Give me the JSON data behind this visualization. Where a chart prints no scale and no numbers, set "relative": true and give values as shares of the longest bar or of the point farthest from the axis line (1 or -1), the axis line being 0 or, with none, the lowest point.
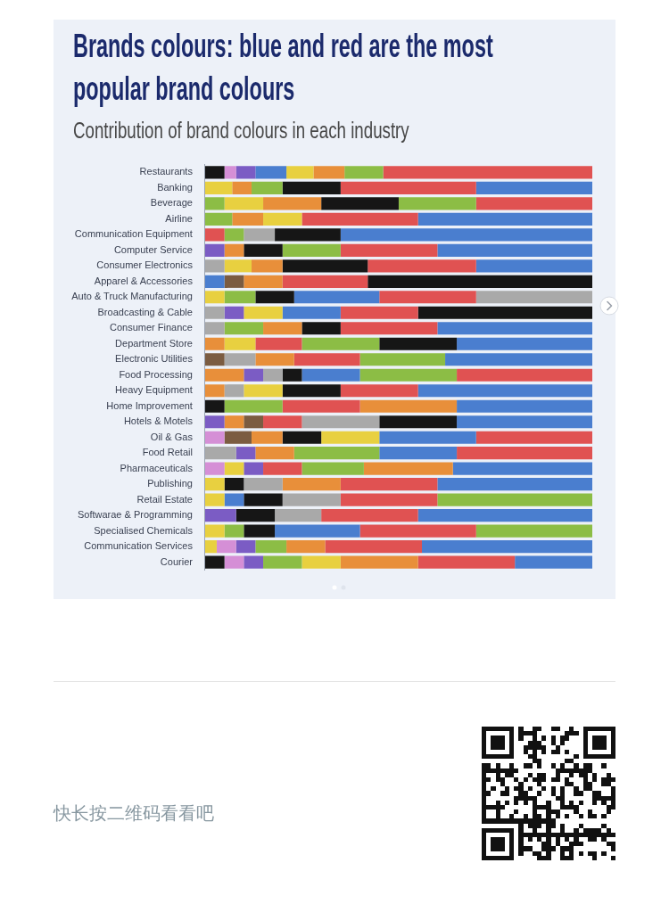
{
  "chart_data": {
    "type": "bar",
    "title": "Brands colours: blue and red are the most popular brand colours",
    "subtitle": "Contribution of brand colours in each industry",
    "orientation": "horizontal",
    "stacked": true,
    "relative": true,
    "categories": [
      "Restaurants",
      "Banking",
      "Beverage",
      "Airline",
      "Communication Equipment",
      "Computer Service",
      "Consumer Electronics",
      "Apparel & Accessories",
      "Auto & Truck Manufacturing",
      "Broadcasting & Cable",
      "Consumer Finance",
      "Department Store",
      "Electronic Utilities",
      "Food Processing",
      "Heavy Equipment",
      "Home Improvement",
      "Hotels & Motels",
      "Oil & Gas",
      "Food Retail",
      "Pharmaceuticals",
      "Publishing",
      "Retail Estate",
      "Softwarae & Programming",
      "Specialised Chemicals",
      "Communication Services",
      "Courier"
    ],
    "series": [
      {
        "values": [
          0.05,
          null,
          null,
          null,
          null,
          null,
          null,
          null,
          null,
          null,
          null,
          null,
          null,
          null,
          null,
          null,
          null,
          null,
          null,
          null,
          null,
          null,
          null,
          null,
          null,
          0.05
        ],
        "colors": [
          "#161616",
          null,
          null,
          null,
          null,
          null,
          null,
          null,
          null,
          null,
          null,
          null,
          null,
          null,
          null,
          null,
          null,
          null,
          null,
          null,
          null,
          null,
          null,
          null,
          null,
          "#161616"
        ]
      },
      {
        "values": [
          0.03,
          null,
          null,
          null,
          null,
          null,
          null,
          null,
          null,
          null,
          null,
          null,
          null,
          0.1,
          null,
          null,
          0.05,
          0.05,
          null,
          0.05,
          null,
          null,
          null,
          null,
          0.03,
          0.05
        ],
        "colors": [
          "#d58fd6",
          null,
          null,
          null,
          null,
          null,
          null,
          null,
          null,
          null,
          null,
          null,
          null,
          "#e88f3a",
          null,
          null,
          "#7b5cc4",
          "#d58fd6",
          null,
          "#d58fd6",
          null,
          null,
          null,
          null,
          "#e8d040",
          "#d58fd6"
        ]
      },
      {
        "values": [
          0.05,
          0.07,
          0.05,
          null,
          null,
          0.05,
          0.05,
          null,
          0.05,
          0.05,
          0.05,
          0.05,
          0.05,
          0.05,
          0.05,
          null,
          0.05,
          0.07,
          0.08,
          0.05,
          0.05,
          0.05,
          null,
          0.05,
          0.05,
          0.05
        ],
        "colors": [
          "#7b5cc4",
          "#e8d040",
          "#8cbd45",
          null,
          null,
          "#7b5cc4",
          "#a9a9a9",
          null,
          "#e8d040",
          "#a9a9a9",
          "#a9a9a9",
          "#e88f3a",
          "#7b5c41",
          "#7b5cc4",
          "#e88f3a",
          null,
          "#e88f3a",
          "#7b5c41",
          "#a9a9a9",
          "#e8d040",
          "#e8d040",
          "#e8d040",
          null,
          "#e8d040",
          "#d58fd6",
          "#7b5cc4"
        ]
      },
      {
        "values": [
          0.08,
          0.05,
          0.1,
          0.07,
          0.05,
          0.05,
          0.07,
          0.05,
          0.08,
          0.05,
          0.1,
          0.08,
          0.08,
          0.05,
          0.05,
          0.05,
          0.05,
          0.08,
          0.05,
          0.05,
          0.05,
          0.05,
          0.08,
          0.05,
          0.05,
          0.1
        ],
        "colors": [
          "#4a7ecf",
          "#e88f3a",
          "#e8d040",
          "#8cbd45",
          "#e05252",
          "#e88f3a",
          "#e8d040",
          "#4a7ecf",
          "#8cbd45",
          "#7b5cc4",
          "#8cbd45",
          "#e8d040",
          "#a9a9a9",
          "#a9a9a9",
          "#a9a9a9",
          "#161616",
          "#7b5c41",
          "#e88f3a",
          "#7b5cc4",
          "#7b5cc4",
          "#161616",
          "#4a7ecf",
          "#7b5cc4",
          "#8cbd45",
          "#7b5cc4",
          "#8cbd45"
        ]
      },
      {
        "values": [
          0.07,
          0.08,
          0.15,
          0.08,
          0.05,
          0.1,
          0.08,
          0.05,
          0.1,
          0.1,
          0.1,
          0.12,
          0.1,
          0.05,
          0.1,
          0.15,
          0.1,
          0.1,
          0.1,
          0.1,
          0.1,
          0.1,
          0.1,
          0.08,
          0.08,
          0.1
        ],
        "colors": [
          "#e8d040",
          "#8cbd45",
          "#e88f3a",
          "#e88f3a",
          "#8cbd45",
          "#161616",
          "#e88f3a",
          "#7b5c41",
          "#161616",
          "#e8d040",
          "#e88f3a",
          "#e05252",
          "#e88f3a",
          "#161616",
          "#e8d040",
          "#8cbd45",
          "#e05252",
          "#161616",
          "#e88f3a",
          "#e05252",
          "#a9a9a9",
          "#161616",
          "#161616",
          "#161616",
          "#8cbd45",
          "#e8d040"
        ]
      },
      {
        "values": [
          0.08,
          0.15,
          0.2,
          0.1,
          0.08,
          0.15,
          0.22,
          0.1,
          0.22,
          0.15,
          0.1,
          0.2,
          0.17,
          0.15,
          0.15,
          0.2,
          0.2,
          0.15,
          0.22,
          0.16,
          0.15,
          0.15,
          0.12,
          0.22,
          0.1,
          0.2
        ],
        "colors": [
          "#e88f3a",
          "#161616",
          "#161616",
          "#e8d040",
          "#a9a9a9",
          "#8cbd45",
          "#161616",
          "#e88f3a",
          "#4a7ecf",
          "#4a7ecf",
          "#161616",
          "#8cbd45",
          "#e05252",
          "#4a7ecf",
          "#161616",
          "#e05252",
          "#a9a9a9",
          "#e8d040",
          "#8cbd45",
          "#8cbd45",
          "#e88f3a",
          "#a9a9a9",
          "#a9a9a9",
          "#4a7ecf",
          "#e88f3a",
          "#e88f3a"
        ]
      },
      {
        "values": [
          0.1,
          0.35,
          0.2,
          0.3,
          0.17,
          0.25,
          0.28,
          0.22,
          0.25,
          0.2,
          0.25,
          0.2,
          0.22,
          0.25,
          0.2,
          0.25,
          0.2,
          0.25,
          0.2,
          0.23,
          0.25,
          0.25,
          0.25,
          0.3,
          0.25,
          0.25
        ],
        "colors": [
          "#8cbd45",
          "#e05252",
          "#8cbd45",
          "#e05252",
          "#161616",
          "#e05252",
          "#e05252",
          "#e05252",
          "#e05252",
          "#e05252",
          "#e05252",
          "#161616",
          "#8cbd45",
          "#8cbd45",
          "#e05252",
          "#e88f3a",
          "#161616",
          "#4a7ecf",
          "#4a7ecf",
          "#e88f3a",
          "#e05252",
          "#e05252",
          "#e05252",
          "#e05252",
          "#e05252",
          "#e05252"
        ]
      },
      {
        "values": [
          0.54,
          0.3,
          0.3,
          0.45,
          0.65,
          0.4,
          0.3,
          0.58,
          0.3,
          0.45,
          0.4,
          0.35,
          0.38,
          0.35,
          0.45,
          0.35,
          0.35,
          0.3,
          0.35,
          0.36,
          0.4,
          0.4,
          0.45,
          0.3,
          0.44,
          0.2
        ],
        "colors": [
          "#e05252",
          "#4a7ecf",
          "#e05252",
          "#4a7ecf",
          "#4a7ecf",
          "#4a7ecf",
          "#4a7ecf",
          "#161616",
          "#a9a9a9",
          "#161616",
          "#4a7ecf",
          "#4a7ecf",
          "#4a7ecf",
          "#e05252",
          "#4a7ecf",
          "#4a7ecf",
          "#4a7ecf",
          "#e05252",
          "#e05252",
          "#4a7ecf",
          "#4a7ecf",
          "#8cbd45",
          "#4a7ecf",
          "#8cbd45",
          "#4a7ecf",
          "#4a7ecf"
        ]
      }
    ],
    "annotations": [
      "快长按二维码看看吧"
    ]
  }
}
